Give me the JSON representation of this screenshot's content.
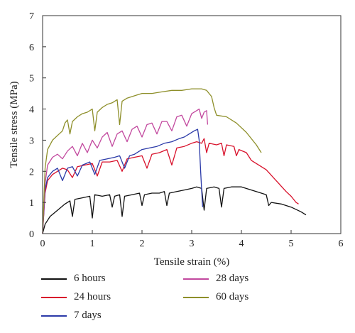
{
  "chart_data": {
    "type": "line",
    "xlabel": "Tensile strain (%)",
    "ylabel": "Tensile stress (MPa)",
    "xlim": [
      0,
      6
    ],
    "ylim": [
      0,
      7
    ],
    "xticks": [
      "0",
      "1",
      "2",
      "3",
      "4",
      "5",
      "6"
    ],
    "yticks": [
      "0",
      "1",
      "2",
      "3",
      "4",
      "5",
      "6",
      "7"
    ],
    "grid": false,
    "legend_position": "bottom",
    "series": [
      {
        "name": "6 hours",
        "color": "#111111",
        "points": [
          [
            0,
            0
          ],
          [
            0.05,
            0.3
          ],
          [
            0.15,
            0.55
          ],
          [
            0.3,
            0.75
          ],
          [
            0.45,
            0.95
          ],
          [
            0.55,
            1.05
          ],
          [
            0.6,
            0.55
          ],
          [
            0.65,
            1.1
          ],
          [
            0.8,
            1.15
          ],
          [
            0.95,
            1.2
          ],
          [
            1.0,
            0.5
          ],
          [
            1.05,
            1.25
          ],
          [
            1.2,
            1.2
          ],
          [
            1.35,
            1.25
          ],
          [
            1.4,
            0.85
          ],
          [
            1.45,
            1.2
          ],
          [
            1.55,
            1.25
          ],
          [
            1.6,
            0.55
          ],
          [
            1.65,
            1.2
          ],
          [
            1.8,
            1.25
          ],
          [
            1.95,
            1.3
          ],
          [
            2.0,
            0.9
          ],
          [
            2.05,
            1.25
          ],
          [
            2.2,
            1.3
          ],
          [
            2.35,
            1.3
          ],
          [
            2.45,
            1.35
          ],
          [
            2.5,
            0.9
          ],
          [
            2.55,
            1.3
          ],
          [
            2.7,
            1.35
          ],
          [
            2.85,
            1.4
          ],
          [
            3.0,
            1.45
          ],
          [
            3.1,
            1.5
          ],
          [
            3.2,
            1.45
          ],
          [
            3.25,
            0.75
          ],
          [
            3.3,
            1.45
          ],
          [
            3.45,
            1.5
          ],
          [
            3.55,
            1.45
          ],
          [
            3.6,
            0.85
          ],
          [
            3.65,
            1.45
          ],
          [
            3.8,
            1.5
          ],
          [
            4.0,
            1.5
          ],
          [
            4.2,
            1.4
          ],
          [
            4.4,
            1.3
          ],
          [
            4.5,
            1.25
          ],
          [
            4.55,
            0.9
          ],
          [
            4.6,
            1.0
          ],
          [
            4.8,
            0.95
          ],
          [
            5.0,
            0.85
          ],
          [
            5.2,
            0.7
          ],
          [
            5.3,
            0.6
          ]
        ]
      },
      {
        "name": "24 hours",
        "color": "#d8112b",
        "points": [
          [
            0,
            0
          ],
          [
            0.05,
            1.3
          ],
          [
            0.1,
            1.7
          ],
          [
            0.2,
            1.9
          ],
          [
            0.3,
            2.0
          ],
          [
            0.4,
            2.1
          ],
          [
            0.5,
            2.05
          ],
          [
            0.6,
            1.8
          ],
          [
            0.7,
            2.15
          ],
          [
            0.85,
            2.2
          ],
          [
            1.0,
            2.25
          ],
          [
            1.1,
            1.85
          ],
          [
            1.2,
            2.3
          ],
          [
            1.35,
            2.3
          ],
          [
            1.5,
            2.35
          ],
          [
            1.6,
            2.0
          ],
          [
            1.7,
            2.4
          ],
          [
            1.85,
            2.45
          ],
          [
            2.0,
            2.5
          ],
          [
            2.1,
            2.1
          ],
          [
            2.2,
            2.55
          ],
          [
            2.35,
            2.6
          ],
          [
            2.5,
            2.7
          ],
          [
            2.6,
            2.2
          ],
          [
            2.7,
            2.75
          ],
          [
            2.85,
            2.8
          ],
          [
            3.0,
            2.9
          ],
          [
            3.1,
            2.95
          ],
          [
            3.2,
            2.9
          ],
          [
            3.25,
            3.05
          ],
          [
            3.3,
            2.6
          ],
          [
            3.35,
            2.9
          ],
          [
            3.5,
            2.85
          ],
          [
            3.6,
            2.9
          ],
          [
            3.65,
            2.5
          ],
          [
            3.7,
            2.85
          ],
          [
            3.85,
            2.8
          ],
          [
            3.9,
            2.5
          ],
          [
            3.95,
            2.7
          ],
          [
            4.1,
            2.6
          ],
          [
            4.2,
            2.35
          ],
          [
            4.3,
            2.25
          ],
          [
            4.5,
            2.05
          ],
          [
            4.7,
            1.7
          ],
          [
            4.9,
            1.35
          ],
          [
            5.0,
            1.2
          ],
          [
            5.1,
            1.0
          ],
          [
            5.15,
            0.95
          ]
        ]
      },
      {
        "name": "7 days",
        "color": "#2b3aa8",
        "points": [
          [
            0,
            0
          ],
          [
            0.05,
            1.4
          ],
          [
            0.1,
            1.8
          ],
          [
            0.2,
            2.0
          ],
          [
            0.3,
            2.1
          ],
          [
            0.4,
            1.7
          ],
          [
            0.5,
            2.1
          ],
          [
            0.6,
            2.15
          ],
          [
            0.7,
            1.85
          ],
          [
            0.8,
            2.2
          ],
          [
            0.95,
            2.3
          ],
          [
            1.05,
            1.9
          ],
          [
            1.15,
            2.35
          ],
          [
            1.3,
            2.4
          ],
          [
            1.45,
            2.45
          ],
          [
            1.55,
            2.5
          ],
          [
            1.65,
            2.1
          ],
          [
            1.75,
            2.5
          ],
          [
            1.85,
            2.55
          ],
          [
            2.0,
            2.7
          ],
          [
            2.15,
            2.75
          ],
          [
            2.3,
            2.8
          ],
          [
            2.45,
            2.9
          ],
          [
            2.6,
            2.95
          ],
          [
            2.75,
            3.05
          ],
          [
            2.85,
            3.1
          ],
          [
            2.95,
            3.2
          ],
          [
            3.05,
            3.3
          ],
          [
            3.12,
            3.35
          ],
          [
            3.15,
            3.0
          ],
          [
            3.18,
            2.0
          ],
          [
            3.2,
            1.4
          ],
          [
            3.22,
            0.85
          ]
        ]
      },
      {
        "name": "28 days",
        "color": "#c2489e",
        "points": [
          [
            0,
            0
          ],
          [
            0.05,
            1.6
          ],
          [
            0.1,
            2.2
          ],
          [
            0.2,
            2.45
          ],
          [
            0.3,
            2.55
          ],
          [
            0.4,
            2.4
          ],
          [
            0.5,
            2.65
          ],
          [
            0.6,
            2.8
          ],
          [
            0.7,
            2.5
          ],
          [
            0.8,
            2.9
          ],
          [
            0.9,
            2.6
          ],
          [
            1.0,
            3.0
          ],
          [
            1.1,
            2.75
          ],
          [
            1.2,
            3.1
          ],
          [
            1.3,
            3.25
          ],
          [
            1.4,
            2.8
          ],
          [
            1.5,
            3.2
          ],
          [
            1.6,
            3.3
          ],
          [
            1.7,
            2.95
          ],
          [
            1.8,
            3.35
          ],
          [
            1.9,
            3.45
          ],
          [
            2.0,
            3.1
          ],
          [
            2.1,
            3.5
          ],
          [
            2.2,
            3.55
          ],
          [
            2.3,
            3.2
          ],
          [
            2.4,
            3.6
          ],
          [
            2.5,
            3.6
          ],
          [
            2.6,
            3.3
          ],
          [
            2.7,
            3.75
          ],
          [
            2.8,
            3.8
          ],
          [
            2.9,
            3.45
          ],
          [
            3.0,
            3.85
          ],
          [
            3.1,
            3.95
          ],
          [
            3.15,
            4.0
          ],
          [
            3.2,
            3.7
          ],
          [
            3.25,
            3.9
          ],
          [
            3.3,
            3.95
          ],
          [
            3.32,
            3.5
          ]
        ]
      },
      {
        "name": "60 days",
        "color": "#8e8f2a",
        "points": [
          [
            0,
            0
          ],
          [
            0.05,
            2.1
          ],
          [
            0.1,
            2.7
          ],
          [
            0.2,
            3.0
          ],
          [
            0.3,
            3.15
          ],
          [
            0.4,
            3.3
          ],
          [
            0.45,
            3.55
          ],
          [
            0.5,
            3.65
          ],
          [
            0.55,
            3.2
          ],
          [
            0.6,
            3.6
          ],
          [
            0.7,
            3.75
          ],
          [
            0.8,
            3.85
          ],
          [
            0.9,
            3.9
          ],
          [
            1.0,
            4.0
          ],
          [
            1.05,
            3.3
          ],
          [
            1.1,
            3.9
          ],
          [
            1.2,
            4.05
          ],
          [
            1.3,
            4.15
          ],
          [
            1.4,
            4.2
          ],
          [
            1.5,
            4.3
          ],
          [
            1.55,
            3.5
          ],
          [
            1.6,
            4.25
          ],
          [
            1.7,
            4.35
          ],
          [
            1.8,
            4.4
          ],
          [
            1.9,
            4.45
          ],
          [
            2.0,
            4.5
          ],
          [
            2.2,
            4.5
          ],
          [
            2.4,
            4.55
          ],
          [
            2.6,
            4.6
          ],
          [
            2.8,
            4.6
          ],
          [
            3.0,
            4.65
          ],
          [
            3.2,
            4.65
          ],
          [
            3.3,
            4.6
          ],
          [
            3.4,
            4.4
          ],
          [
            3.45,
            4.05
          ],
          [
            3.5,
            3.8
          ],
          [
            3.7,
            3.75
          ],
          [
            3.9,
            3.55
          ],
          [
            4.1,
            3.25
          ],
          [
            4.3,
            2.85
          ],
          [
            4.4,
            2.6
          ]
        ]
      }
    ]
  }
}
